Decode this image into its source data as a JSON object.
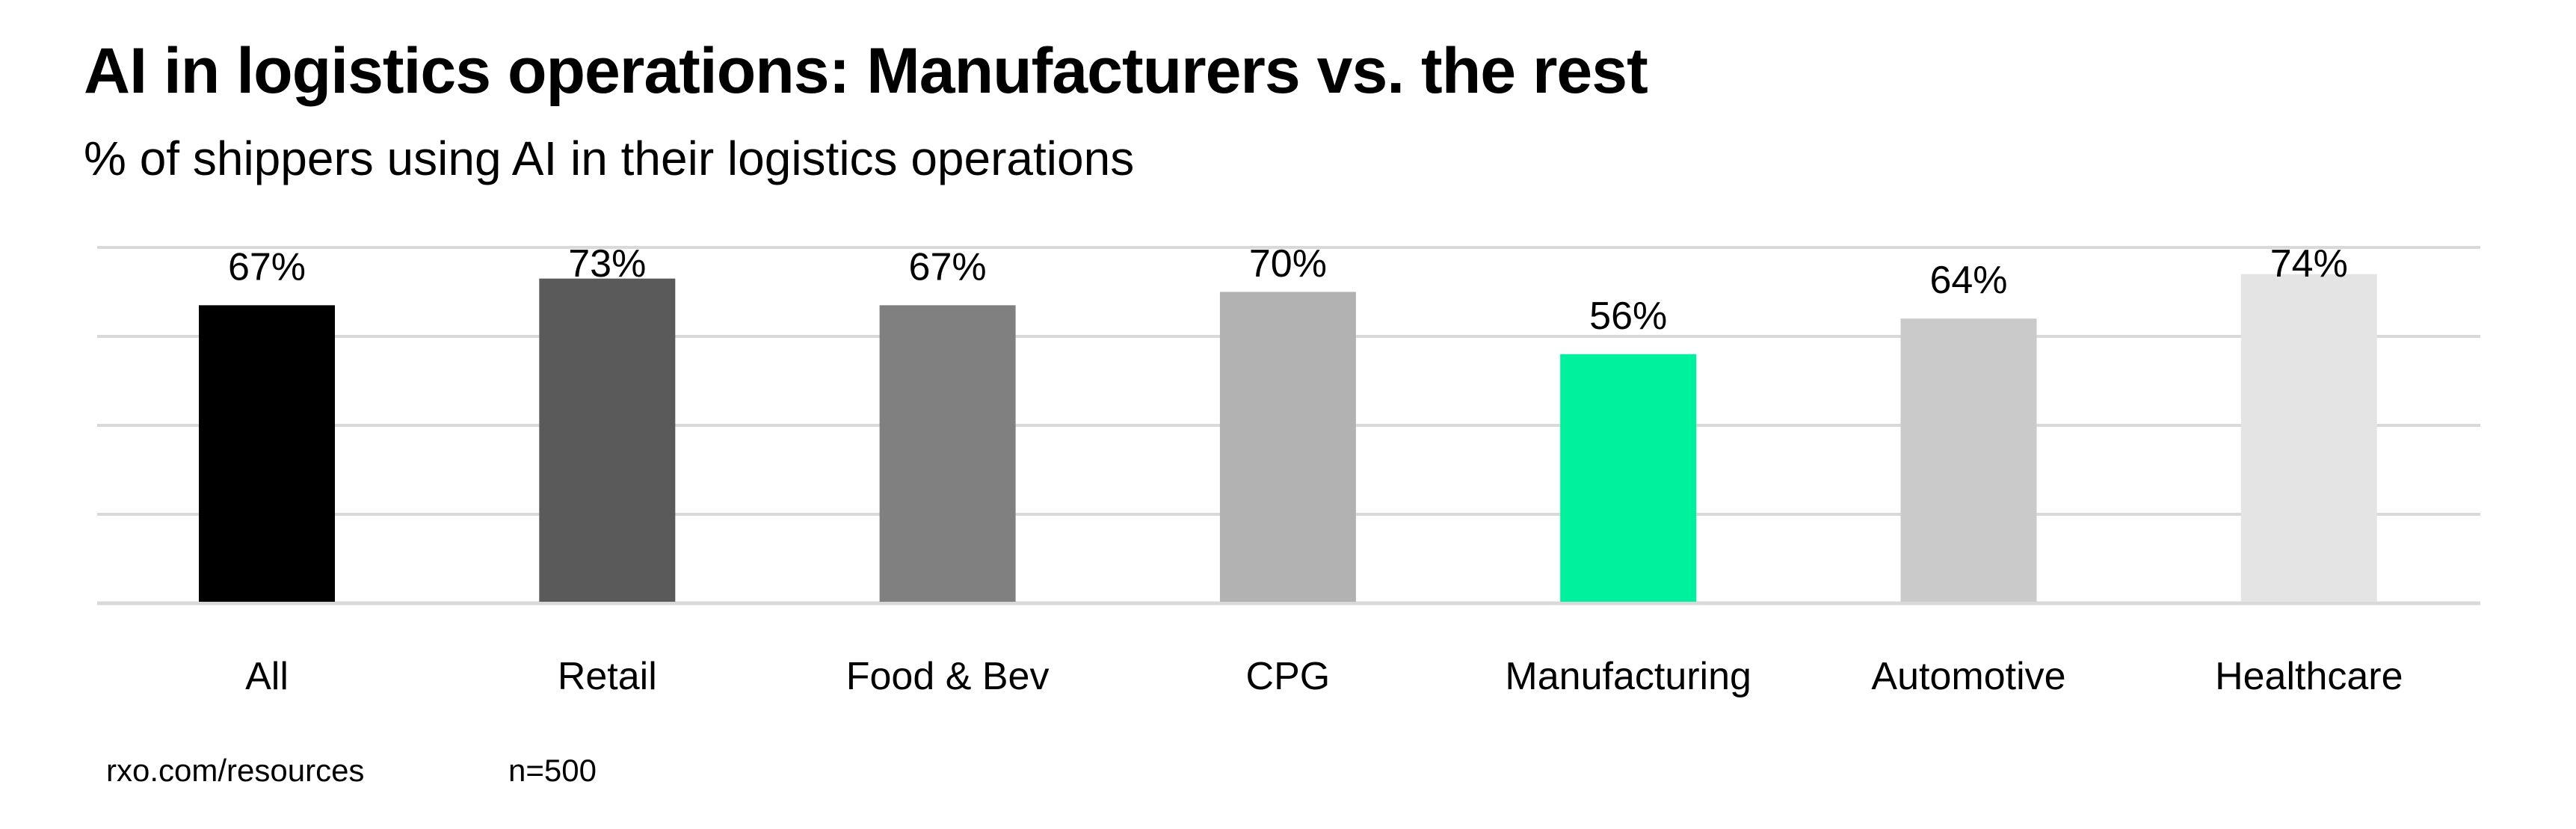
{
  "header": {
    "title": "AI in logistics operations: Manufacturers vs. the rest",
    "subtitle": "% of shippers using AI in their logistics operations"
  },
  "footer": {
    "source": "rxo.com/resources",
    "sample_size": "n=500"
  },
  "chart_data": {
    "type": "bar",
    "title": "AI in logistics operations: Manufacturers vs. the rest",
    "subtitle": "% of shippers using AI in their logistics operations",
    "xlabel": "",
    "ylabel": "",
    "categories": [
      "All",
      "Retail",
      "Food & Bev",
      "CPG",
      "Manufacturing",
      "Automotive",
      "Healthcare"
    ],
    "values": [
      67,
      73,
      67,
      70,
      56,
      64,
      74
    ],
    "value_labels": [
      "67%",
      "73%",
      "67%",
      "70%",
      "56%",
      "64%",
      "74%"
    ],
    "colors": [
      "#000000",
      "#5a5a5a",
      "#808080",
      "#b2b2b2",
      "#00f19e",
      "#cacaca",
      "#e4e4e4"
    ],
    "highlight": "Manufacturing",
    "ylim": [
      0,
      80
    ],
    "yticks": [
      0,
      20,
      40,
      60,
      80
    ],
    "ytick_labels_visible": false,
    "grid": true,
    "grid_color": "#d9d9d9",
    "legend": "none"
  }
}
